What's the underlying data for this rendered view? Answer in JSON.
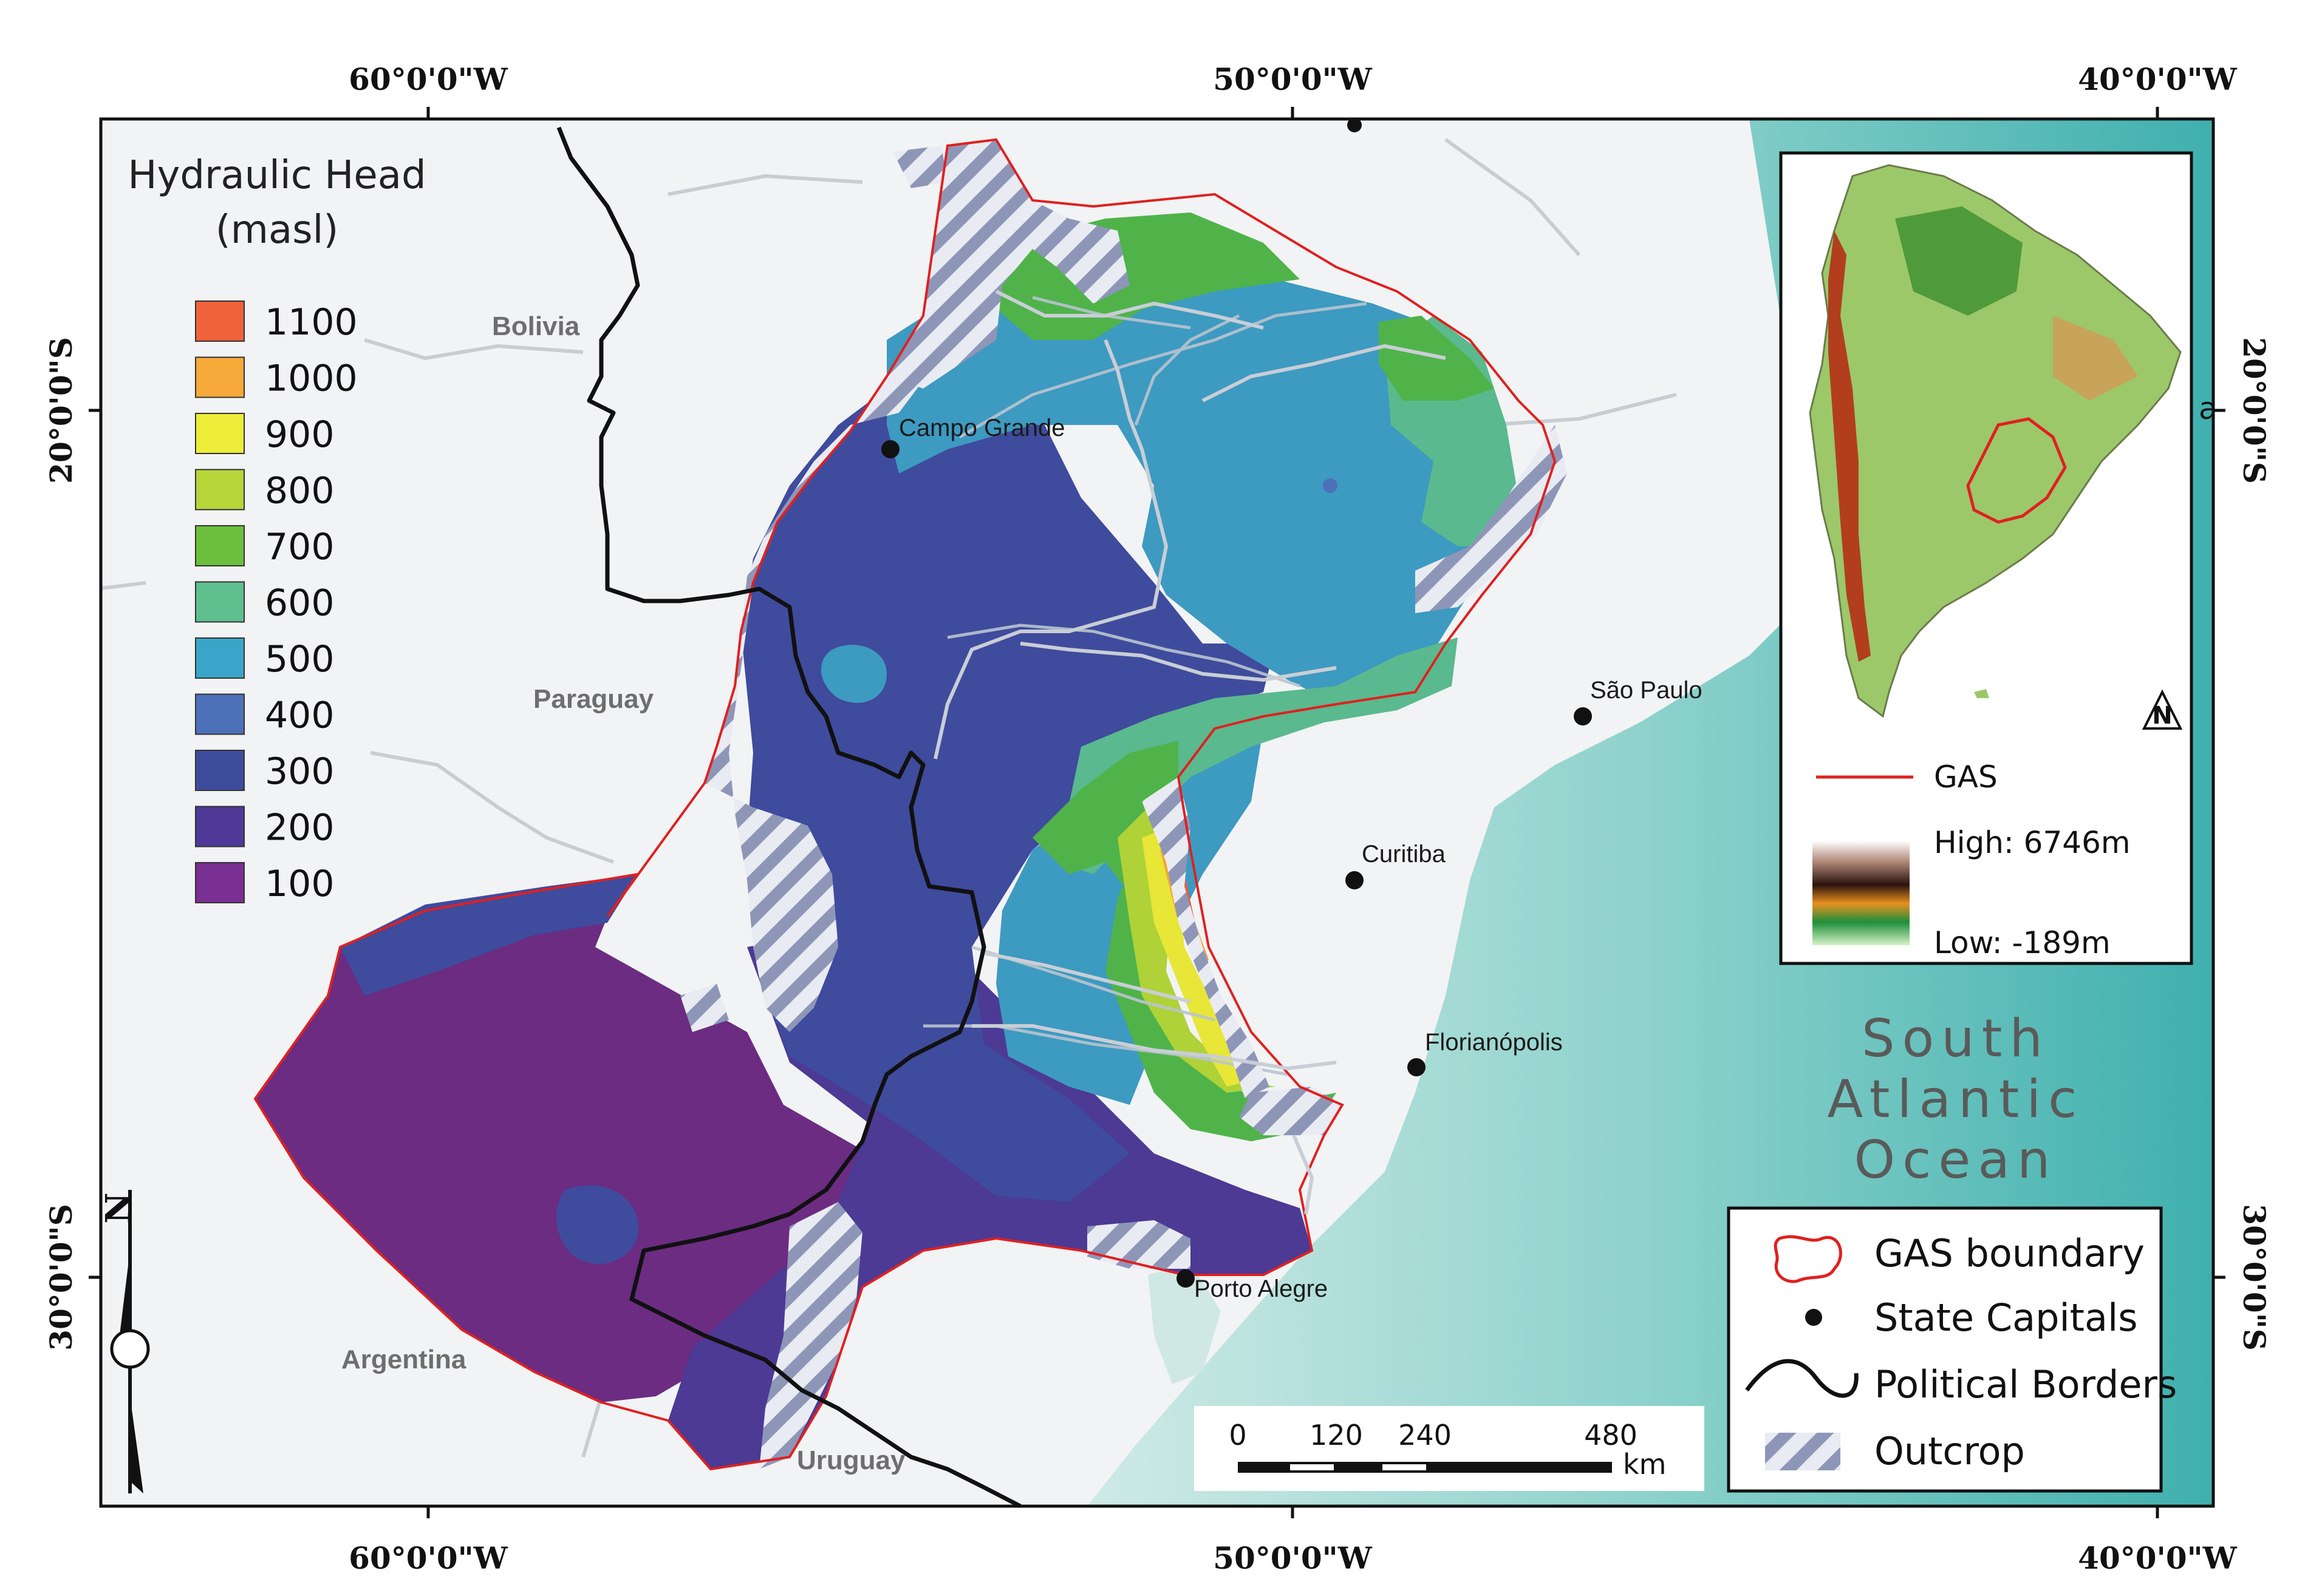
{
  "map": {
    "graticule": {
      "top_longitudes": [
        "60°0'0\"W",
        "50°0'0\"W",
        "40°0'0\"W"
      ],
      "bottom_longitudes": [
        "60°0'0\"W",
        "50°0'0\"W",
        "40°0'0\"W"
      ],
      "left_latitudes": [
        "20°0'0\"S",
        "30°0'0\"S"
      ],
      "right_latitudes": [
        "20°0'0\"S",
        "30°0'0\"S"
      ]
    },
    "countries": [
      "Bolivia",
      "Paraguay",
      "Argentina",
      "Uruguay"
    ],
    "cities": [
      "Campo Grande",
      "São Paulo",
      "Curitiba",
      "Florianópolis",
      "Porto Alegre"
    ],
    "ocean_label": [
      "South",
      "Atlantic",
      "Ocean"
    ],
    "colors": {
      "background": "#f2f3f4",
      "ocean_near": "#c9e8e4",
      "ocean_far": "#4fb8b6",
      "gas_boundary": "#e02020",
      "political_border": "#111111",
      "rivers": "#c8ccd0"
    }
  },
  "legend": {
    "title_line1": "Hydraulic Head",
    "title_line2": "(masl)",
    "classes": [
      {
        "value": "1100",
        "color": "#f0623a"
      },
      {
        "value": "1000",
        "color": "#f7a93a"
      },
      {
        "value": "900",
        "color": "#eded3a"
      },
      {
        "value": "800",
        "color": "#b6d63a"
      },
      {
        "value": "700",
        "color": "#6cbf3c"
      },
      {
        "value": "600",
        "color": "#5fbf8f"
      },
      {
        "value": "500",
        "color": "#3aa5c8"
      },
      {
        "value": "400",
        "color": "#4d71b8"
      },
      {
        "value": "300",
        "color": "#3e4c9c"
      },
      {
        "value": "200",
        "color": "#4e3a96"
      },
      {
        "value": "100",
        "color": "#7a2f92"
      }
    ]
  },
  "inset": {
    "gas_label": "GAS",
    "high_label": "High: 6746m",
    "low_label": "Low: -189m",
    "edge_letter": "a"
  },
  "key": {
    "items": [
      "GAS boundary",
      "State Capitals",
      "Political Borders",
      "Outcrop"
    ]
  },
  "scalebar": {
    "ticks": [
      "0",
      "120",
      "240",
      "480"
    ],
    "unit": "km"
  }
}
